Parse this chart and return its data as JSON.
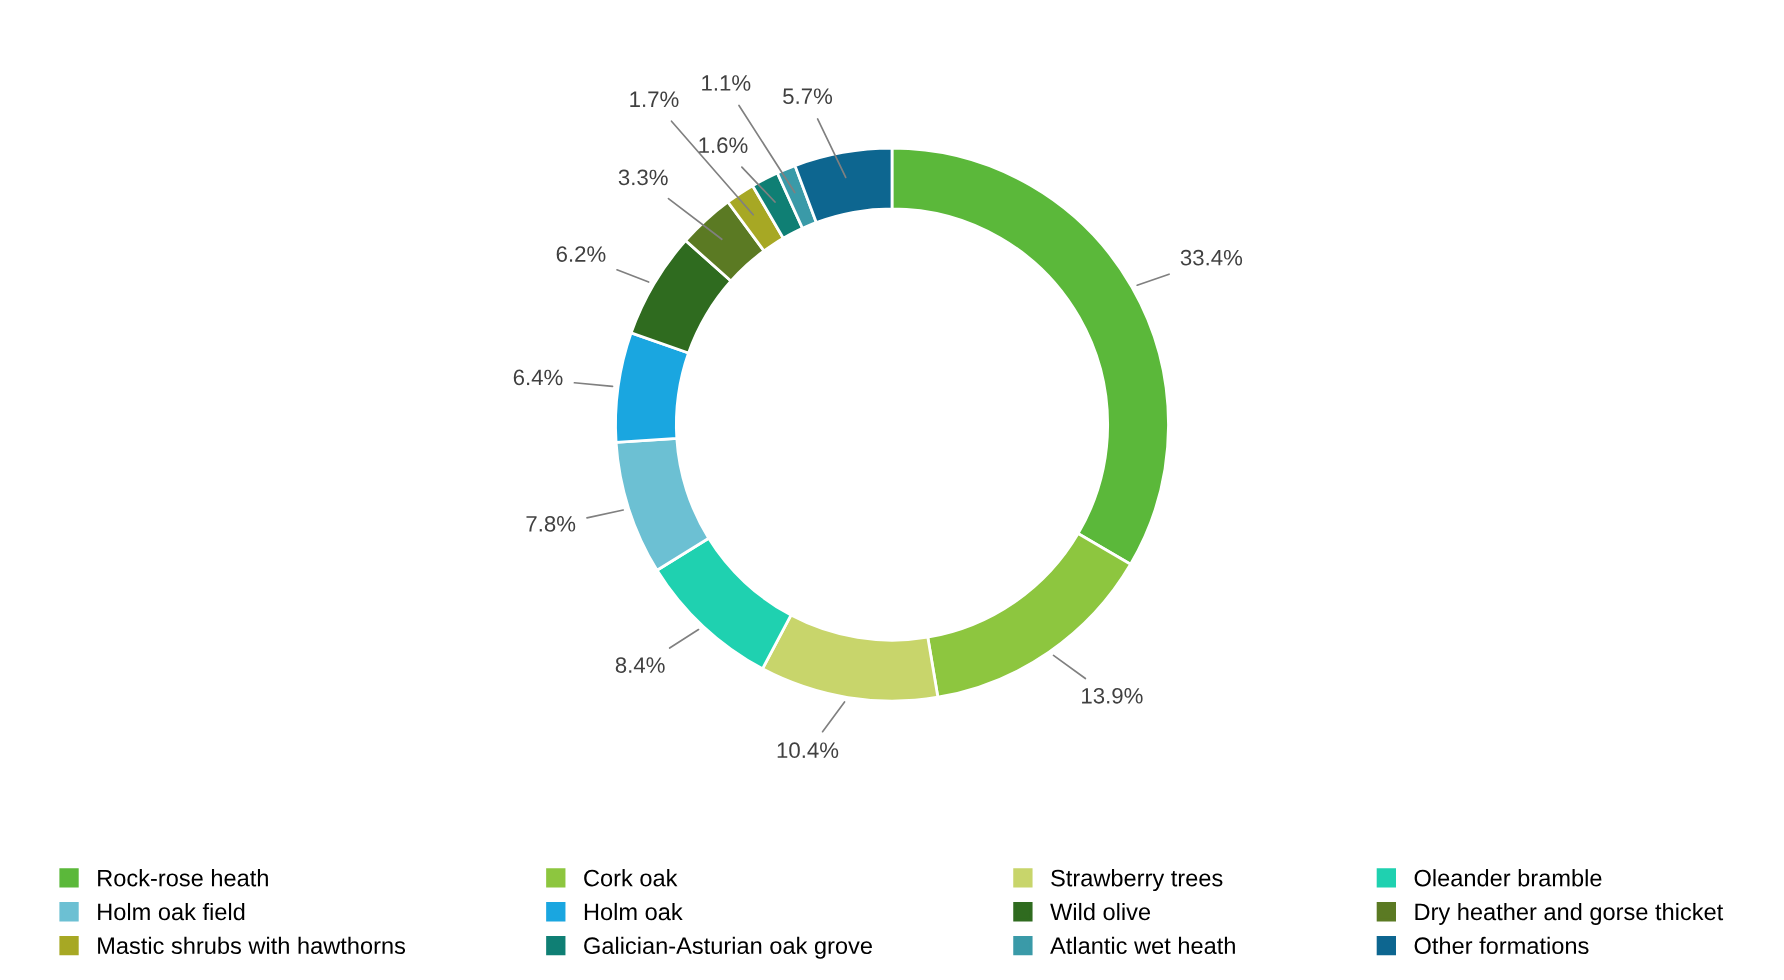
{
  "chart_data": {
    "type": "donut",
    "categories": [
      "Rock-rose heath",
      "Cork oak",
      "Strawberry trees",
      "Oleander bramble",
      "Holm oak field",
      "Holm oak",
      "Wild olive",
      "Dry heather and gorse thicket",
      "Mastic shrubs with hawthorns",
      "Galician-Asturian oak grove",
      "Atlantic wet heath",
      "Other formations"
    ],
    "values": [
      33.4,
      13.9,
      10.4,
      8.4,
      7.8,
      6.4,
      6.2,
      3.3,
      1.7,
      1.6,
      1.1,
      5.7
    ],
    "colors": [
      "#5bb83a",
      "#8dc63f",
      "#c8d56b",
      "#1fd1b0",
      "#6cc0d3",
      "#1aa6e0",
      "#2f6b1f",
      "#5b7a23",
      "#a7a824",
      "#0f7f74",
      "#3a9aa8",
      "#0d6690"
    ],
    "value_labels": [
      "33.4%",
      "13.9%",
      "10.4%",
      "8.4%",
      "7.8%",
      "6.4%",
      "6.2%",
      "3.3%",
      "1.7%",
      "1.6%",
      "1.1%",
      "5.7%"
    ],
    "legend": "bottom"
  }
}
